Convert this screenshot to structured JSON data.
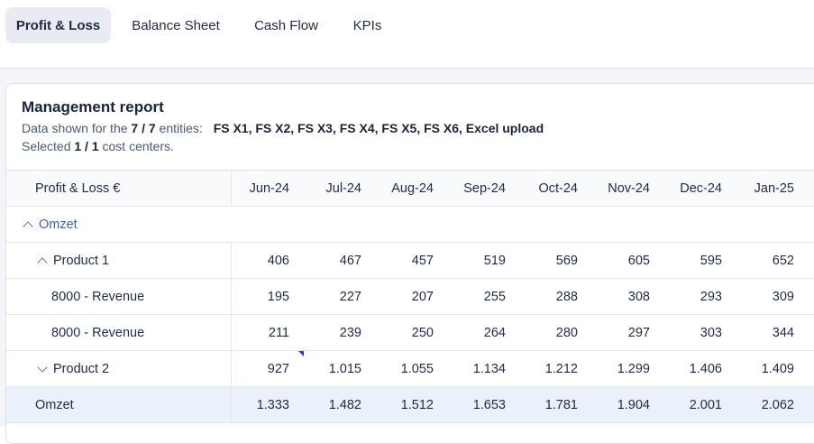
{
  "tabs": [
    {
      "label": "Profit & Loss",
      "active": true
    },
    {
      "label": "Balance Sheet"
    },
    {
      "label": "Cash Flow"
    },
    {
      "label": "KPIs"
    }
  ],
  "report": {
    "title": "Management report",
    "entities_prefix": "Data shown for the",
    "entities_count": "7 / 7",
    "entities_suffix": "entities:",
    "entities_list": "FS X1, FS X2, FS X3, FS X4, FS X5, FS X6, Excel upload",
    "cost_prefix": "Selected",
    "cost_count": "1 / 1",
    "cost_suffix": "cost centers."
  },
  "table": {
    "header_label": "Profit & Loss €",
    "months": [
      "Jun-24",
      "Jul-24",
      "Aug-24",
      "Sep-24",
      "Oct-24",
      "Nov-24",
      "Dec-24",
      "Jan-25"
    ],
    "group_label": "Omzet",
    "rows": [
      {
        "label": "Product 1",
        "values": [
          "406",
          "467",
          "457",
          "519",
          "569",
          "605",
          "595",
          "652"
        ]
      },
      {
        "label": "8000 - Revenue",
        "values": [
          "195",
          "227",
          "207",
          "255",
          "288",
          "308",
          "293",
          "309"
        ]
      },
      {
        "label": "8000 - Revenue",
        "values": [
          "211",
          "239",
          "250",
          "264",
          "280",
          "297",
          "303",
          "344"
        ]
      },
      {
        "label": "Product 2",
        "values": [
          "927",
          "1.015",
          "1.055",
          "1.134",
          "1.212",
          "1.299",
          "1.406",
          "1.409"
        ]
      }
    ],
    "total": {
      "label": "Omzet",
      "values": [
        "1.333",
        "1.482",
        "1.512",
        "1.653",
        "1.781",
        "1.904",
        "2.001",
        "2.062"
      ]
    }
  },
  "colors": {
    "accent": "#2b3fcf",
    "active_tab": "#e8ebf1",
    "total_row": "#eaf1fb"
  }
}
